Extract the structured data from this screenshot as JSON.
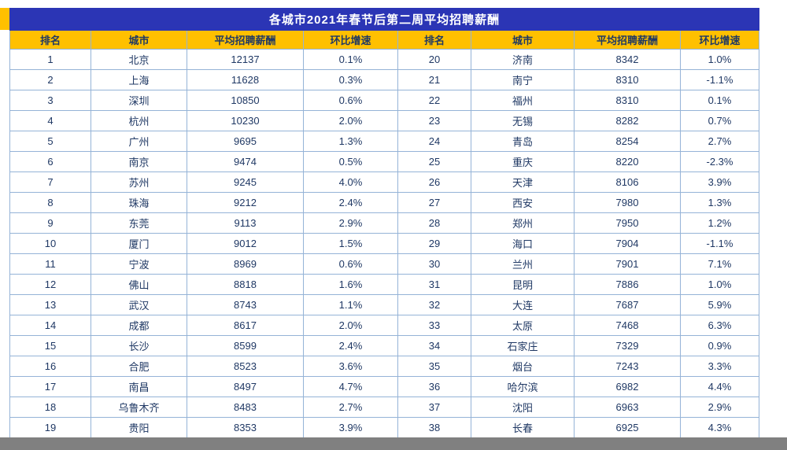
{
  "title": "各城市2021年春节后第二周平均招聘薪酬",
  "columns": [
    "排名",
    "城市",
    "平均招聘薪酬",
    "环比增速",
    "排名",
    "城市",
    "平均招聘薪酬",
    "环比增速"
  ],
  "chart_data": {
    "type": "table",
    "title": "各城市2021年春节后第二周平均招聘薪酬",
    "columns": [
      "排名",
      "城市",
      "平均招聘薪酬",
      "环比增速"
    ],
    "rows_note": "two side-by-side panes, ranks 1-19 and 20-38"
  },
  "rows": [
    [
      "1",
      "北京",
      "12137",
      "0.1%",
      "20",
      "济南",
      "8342",
      "1.0%"
    ],
    [
      "2",
      "上海",
      "11628",
      "0.3%",
      "21",
      "南宁",
      "8310",
      "-1.1%"
    ],
    [
      "3",
      "深圳",
      "10850",
      "0.6%",
      "22",
      "福州",
      "8310",
      "0.1%"
    ],
    [
      "4",
      "杭州",
      "10230",
      "2.0%",
      "23",
      "无锡",
      "8282",
      "0.7%"
    ],
    [
      "5",
      "广州",
      "9695",
      "1.3%",
      "24",
      "青岛",
      "8254",
      "2.7%"
    ],
    [
      "6",
      "南京",
      "9474",
      "0.5%",
      "25",
      "重庆",
      "8220",
      "-2.3%"
    ],
    [
      "7",
      "苏州",
      "9245",
      "4.0%",
      "26",
      "天津",
      "8106",
      "3.9%"
    ],
    [
      "8",
      "珠海",
      "9212",
      "2.4%",
      "27",
      "西安",
      "7980",
      "1.3%"
    ],
    [
      "9",
      "东莞",
      "9113",
      "2.9%",
      "28",
      "郑州",
      "7950",
      "1.2%"
    ],
    [
      "10",
      "厦门",
      "9012",
      "1.5%",
      "29",
      "海口",
      "7904",
      "-1.1%"
    ],
    [
      "11",
      "宁波",
      "8969",
      "0.6%",
      "30",
      "兰州",
      "7901",
      "7.1%"
    ],
    [
      "12",
      "佛山",
      "8818",
      "1.6%",
      "31",
      "昆明",
      "7886",
      "1.0%"
    ],
    [
      "13",
      "武汉",
      "8743",
      "1.1%",
      "32",
      "大连",
      "7687",
      "5.9%"
    ],
    [
      "14",
      "成都",
      "8617",
      "2.0%",
      "33",
      "太原",
      "7468",
      "6.3%"
    ],
    [
      "15",
      "长沙",
      "8599",
      "2.4%",
      "34",
      "石家庄",
      "7329",
      "0.9%"
    ],
    [
      "16",
      "合肥",
      "8523",
      "3.6%",
      "35",
      "烟台",
      "7243",
      "3.3%"
    ],
    [
      "17",
      "南昌",
      "8497",
      "4.7%",
      "36",
      "哈尔滨",
      "6982",
      "4.4%"
    ],
    [
      "18",
      "乌鲁木齐",
      "8483",
      "2.7%",
      "37",
      "沈阳",
      "6963",
      "2.9%"
    ],
    [
      "19",
      "贵阳",
      "8353",
      "3.9%",
      "38",
      "长春",
      "6925",
      "4.3%"
    ]
  ],
  "colors": {
    "title_bg": "#2b35b5",
    "header_bg": "#ffc000",
    "text_navy": "#1f3864",
    "border_blue": "#95b3d7",
    "bottom_gray": "#808080"
  }
}
